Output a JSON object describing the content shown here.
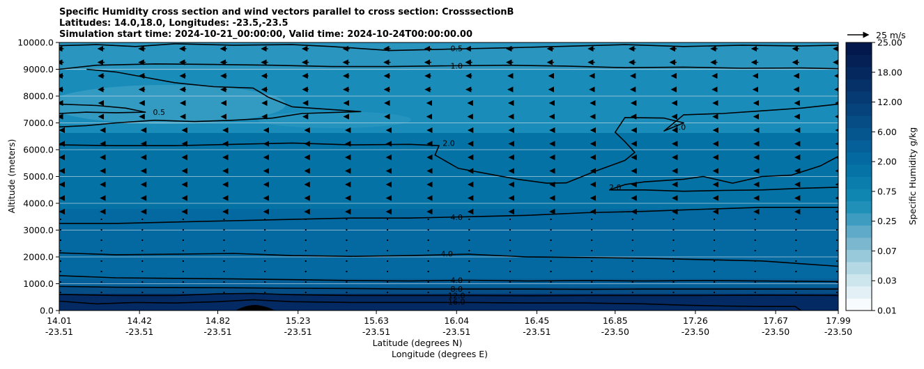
{
  "chart_data": {
    "type": "contour",
    "title_lines": [
      "Specific Humidity cross section and wind vectors parallel to cross section: CrosssectionB",
      "Latitudes: 14.0,18.0, Longitudes: -23.5,-23.5",
      "Simulation start time: 2024-10-21_00:00:00, Valid time: 2024-10-24T00:00:00.00"
    ],
    "xlabel_lat": "Latitude (degrees N)",
    "xlabel_lon": "Longitude (degrees E)",
    "ylabel": "Altitude (meters)",
    "xlim": [
      14.01,
      17.99
    ],
    "ylim": [
      0,
      10000
    ],
    "x_ticks": [
      {
        "lat": "14.01",
        "lon": "-23.51",
        "x": 14.01
      },
      {
        "lat": "14.42",
        "lon": "-23.51",
        "x": 14.42
      },
      {
        "lat": "14.82",
        "lon": "-23.51",
        "x": 14.82
      },
      {
        "lat": "15.23",
        "lon": "-23.51",
        "x": 15.23
      },
      {
        "lat": "15.63",
        "lon": "-23.51",
        "x": 15.63
      },
      {
        "lat": "16.04",
        "lon": "-23.51",
        "x": 16.04
      },
      {
        "lat": "16.45",
        "lon": "-23.51",
        "x": 16.45
      },
      {
        "lat": "16.85",
        "lon": "-23.50",
        "x": 16.85
      },
      {
        "lat": "17.26",
        "lon": "-23.50",
        "x": 17.26
      },
      {
        "lat": "17.67",
        "lon": "-23.50",
        "x": 17.67
      },
      {
        "lat": "17.99",
        "lon": "-23.50",
        "x": 17.99
      }
    ],
    "y_ticks": [
      {
        "label": "0.0",
        "y": 0
      },
      {
        "label": "1000.0",
        "y": 1000
      },
      {
        "label": "2000.0",
        "y": 2000
      },
      {
        "label": "3000.0",
        "y": 3000
      },
      {
        "label": "4000.0",
        "y": 4000
      },
      {
        "label": "5000.0",
        "y": 5000
      },
      {
        "label": "6000.0",
        "y": 6000
      },
      {
        "label": "7000.0",
        "y": 7000
      },
      {
        "label": "8000.0",
        "y": 8000
      },
      {
        "label": "9000.0",
        "y": 9000
      },
      {
        "label": "10000.0",
        "y": 10000
      }
    ],
    "grid": "horizontal",
    "colorbar": {
      "label": "Specific Humidity g/kg",
      "tick_labels": [
        "0.01",
        "0.03",
        "0.07",
        "0.25",
        "0.75",
        "2.00",
        "6.00",
        "12.00",
        "18.00",
        "25.00"
      ],
      "colors": [
        "#f7fbfd",
        "#e3f1f6",
        "#cde6ee",
        "#b4d9e5",
        "#97c9db",
        "#7bb8d0",
        "#5eaac8",
        "#3e9cc0",
        "#2090b8",
        "#0f86b1",
        "#0a7dac",
        "#0573a6",
        "#0469a0",
        "#055f98",
        "#05568f",
        "#064d86",
        "#06437c",
        "#063a72",
        "#063168",
        "#05285e",
        "#042055",
        "#03194d"
      ]
    },
    "wind_key": {
      "label": "25 m/s",
      "speed": 25
    },
    "contour_labels": [
      {
        "text": "0.5",
        "x": 16.04,
        "y": 9780
      },
      {
        "text": "1.0",
        "x": 16.04,
        "y": 9130
      },
      {
        "text": "0.5",
        "x": 14.52,
        "y": 7400
      },
      {
        "text": "2.0",
        "x": 16.0,
        "y": 6250
      },
      {
        "text": "2.0",
        "x": 17.18,
        "y": 6850
      },
      {
        "text": "2.0",
        "x": 16.85,
        "y": 4600
      },
      {
        "text": "4.0",
        "x": 16.04,
        "y": 3480
      },
      {
        "text": "4.0",
        "x": 15.99,
        "y": 2120
      },
      {
        "text": "4.0",
        "x": 16.04,
        "y": 1130
      },
      {
        "text": "8.0",
        "x": 16.04,
        "y": 800
      },
      {
        "text": "12.0",
        "x": 16.04,
        "y": 560
      },
      {
        "text": "16.0",
        "x": 16.04,
        "y": 330
      }
    ],
    "contours": [
      {
        "level": 0.5,
        "points": [
          [
            14.01,
            9880
          ],
          [
            14.2,
            9920
          ],
          [
            14.4,
            9850
          ],
          [
            14.6,
            9950
          ],
          [
            14.9,
            9900
          ],
          [
            15.2,
            9920
          ],
          [
            15.4,
            9850
          ],
          [
            15.7,
            9700
          ],
          [
            16.0,
            9750
          ],
          [
            16.3,
            9800
          ],
          [
            16.6,
            9860
          ],
          [
            16.9,
            9920
          ],
          [
            17.2,
            9850
          ],
          [
            17.5,
            9900
          ],
          [
            17.8,
            9870
          ],
          [
            17.99,
            9900
          ]
        ]
      },
      {
        "level": 1.0,
        "points": [
          [
            14.01,
            9000
          ],
          [
            14.2,
            9150
          ],
          [
            14.5,
            9200
          ],
          [
            14.8,
            9180
          ],
          [
            15.1,
            9150
          ],
          [
            15.4,
            9100
          ],
          [
            15.7,
            9100
          ],
          [
            16.0,
            9130
          ],
          [
            16.3,
            9150
          ],
          [
            16.6,
            9120
          ],
          [
            16.9,
            9060
          ],
          [
            17.2,
            9080
          ],
          [
            17.5,
            9040
          ],
          [
            17.8,
            9050
          ],
          [
            17.99,
            9020
          ]
        ]
      },
      {
        "level": 1.0,
        "points": [
          [
            14.15,
            9000
          ],
          [
            14.3,
            8900
          ],
          [
            14.45,
            8700
          ],
          [
            14.6,
            8500
          ],
          [
            14.8,
            8350
          ],
          [
            15.0,
            8300
          ],
          [
            15.08,
            7950
          ],
          [
            15.2,
            7600
          ],
          [
            15.4,
            7500
          ],
          [
            15.55,
            7420
          ],
          [
            15.25,
            7350
          ],
          [
            15.1,
            7180
          ],
          [
            14.9,
            7100
          ],
          [
            14.7,
            7050
          ],
          [
            14.5,
            7100
          ],
          [
            14.3,
            7000
          ],
          [
            14.15,
            6900
          ],
          [
            14.01,
            6850
          ]
        ]
      },
      {
        "level": 0.5,
        "points": [
          [
            14.01,
            7700
          ],
          [
            14.2,
            7650
          ],
          [
            14.35,
            7550
          ],
          [
            14.45,
            7400
          ],
          [
            14.3,
            7380
          ],
          [
            14.15,
            7400
          ],
          [
            14.01,
            7350
          ]
        ]
      },
      {
        "level": 2.0,
        "points": [
          [
            14.01,
            6180
          ],
          [
            14.3,
            6150
          ],
          [
            14.6,
            6150
          ],
          [
            14.9,
            6200
          ],
          [
            15.2,
            6250
          ],
          [
            15.5,
            6180
          ],
          [
            15.8,
            6200
          ],
          [
            15.95,
            6150
          ],
          [
            15.93,
            5800
          ],
          [
            16.05,
            5300
          ],
          [
            16.2,
            5100
          ],
          [
            16.35,
            4900
          ],
          [
            16.5,
            4750
          ],
          [
            16.6,
            4760
          ],
          [
            16.75,
            5200
          ],
          [
            16.9,
            5600
          ],
          [
            16.95,
            5900
          ],
          [
            16.9,
            6300
          ],
          [
            16.85,
            6650
          ],
          [
            16.9,
            7200
          ],
          [
            17.1,
            7180
          ],
          [
            17.2,
            7000
          ],
          [
            17.1,
            6700
          ],
          [
            17.2,
            7300
          ],
          [
            17.4,
            7350
          ],
          [
            17.6,
            7450
          ],
          [
            17.8,
            7550
          ],
          [
            17.99,
            7700
          ]
        ]
      },
      {
        "level": 2.0,
        "points": [
          [
            16.82,
            4500
          ],
          [
            16.9,
            4700
          ],
          [
            17.0,
            4800
          ],
          [
            17.1,
            4850
          ],
          [
            17.2,
            4900
          ],
          [
            17.3,
            5000
          ],
          [
            17.45,
            4750
          ],
          [
            17.6,
            5000
          ],
          [
            17.75,
            5050
          ],
          [
            17.9,
            5400
          ],
          [
            17.99,
            5750
          ]
        ]
      },
      {
        "level": 2.0,
        "points": [
          [
            16.82,
            4500
          ],
          [
            17.0,
            4500
          ],
          [
            17.2,
            4450
          ],
          [
            17.4,
            4480
          ],
          [
            17.6,
            4500
          ],
          [
            17.8,
            4560
          ],
          [
            17.99,
            4600
          ]
        ]
      },
      {
        "level": 4.0,
        "points": [
          [
            14.01,
            3250
          ],
          [
            14.3,
            3250
          ],
          [
            14.6,
            3300
          ],
          [
            14.9,
            3350
          ],
          [
            15.2,
            3400
          ],
          [
            15.5,
            3450
          ],
          [
            15.8,
            3450
          ],
          [
            16.1,
            3500
          ],
          [
            16.4,
            3550
          ],
          [
            16.7,
            3650
          ],
          [
            17.0,
            3700
          ],
          [
            17.3,
            3780
          ],
          [
            17.6,
            3850
          ],
          [
            17.99,
            3850
          ]
        ]
      },
      {
        "level": 4.0,
        "points": [
          [
            14.01,
            2150
          ],
          [
            14.3,
            2080
          ],
          [
            14.6,
            2100
          ],
          [
            14.9,
            2130
          ],
          [
            15.2,
            2050
          ],
          [
            15.5,
            2020
          ],
          [
            15.8,
            2050
          ],
          [
            16.1,
            2100
          ],
          [
            16.4,
            2000
          ],
          [
            16.7,
            1980
          ],
          [
            17.0,
            1950
          ],
          [
            17.3,
            1900
          ],
          [
            17.6,
            1850
          ],
          [
            17.99,
            1650
          ]
        ]
      },
      {
        "level": 4.0,
        "points": [
          [
            14.01,
            1300
          ],
          [
            14.3,
            1220
          ],
          [
            14.6,
            1200
          ],
          [
            14.9,
            1180
          ],
          [
            15.2,
            1150
          ],
          [
            15.5,
            1120
          ],
          [
            15.8,
            1100
          ],
          [
            16.1,
            1130
          ],
          [
            16.4,
            1100
          ],
          [
            16.7,
            1120
          ],
          [
            17.0,
            1100
          ],
          [
            17.3,
            1120
          ],
          [
            17.6,
            1100
          ],
          [
            17.99,
            1080
          ]
        ]
      },
      {
        "level": 8.0,
        "points": [
          [
            14.01,
            900
          ],
          [
            14.3,
            870
          ],
          [
            14.6,
            860
          ],
          [
            14.9,
            850
          ],
          [
            15.2,
            830
          ],
          [
            15.5,
            820
          ],
          [
            15.8,
            800
          ],
          [
            16.1,
            800
          ],
          [
            16.4,
            800
          ],
          [
            16.7,
            790
          ],
          [
            17.0,
            800
          ],
          [
            17.3,
            800
          ],
          [
            17.6,
            800
          ],
          [
            17.99,
            800
          ]
        ]
      },
      {
        "level": 12.0,
        "points": [
          [
            14.01,
            600
          ],
          [
            14.3,
            560
          ],
          [
            14.6,
            560
          ],
          [
            14.82,
            620
          ],
          [
            15.0,
            640
          ],
          [
            15.2,
            590
          ],
          [
            15.5,
            560
          ],
          [
            15.8,
            560
          ],
          [
            16.1,
            560
          ],
          [
            16.4,
            550
          ],
          [
            16.7,
            560
          ],
          [
            17.0,
            560
          ],
          [
            17.3,
            560
          ],
          [
            17.6,
            570
          ],
          [
            17.99,
            560
          ]
        ]
      },
      {
        "level": 16.0,
        "points": [
          [
            14.01,
            350
          ],
          [
            14.2,
            250
          ],
          [
            14.4,
            300
          ],
          [
            14.6,
            280
          ],
          [
            14.82,
            330
          ],
          [
            15.0,
            400
          ],
          [
            15.2,
            330
          ],
          [
            15.5,
            300
          ],
          [
            15.8,
            300
          ],
          [
            16.1,
            300
          ],
          [
            16.4,
            280
          ],
          [
            16.7,
            280
          ],
          [
            17.0,
            250
          ],
          [
            17.2,
            200
          ],
          [
            17.4,
            170
          ],
          [
            17.6,
            150
          ],
          [
            17.77,
            150
          ],
          [
            17.8,
            0
          ]
        ]
      }
    ]
  }
}
